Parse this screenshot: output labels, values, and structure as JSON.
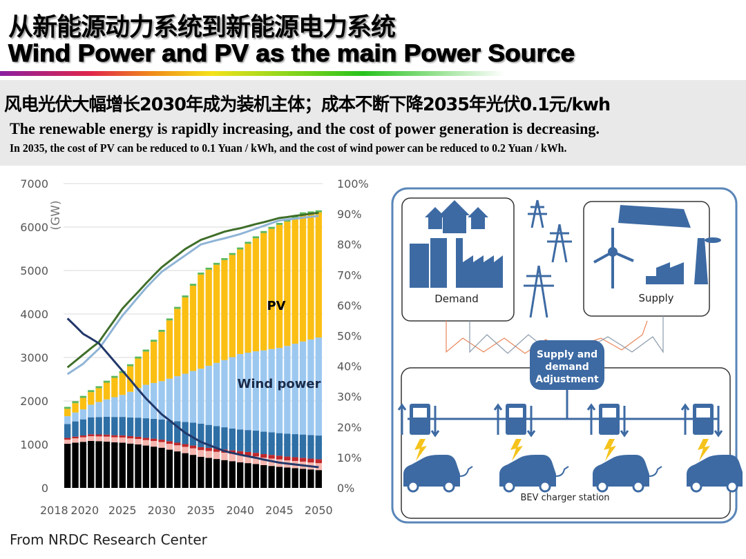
{
  "header": {
    "title_cn": "从新能源动力系统到新能源电力系统",
    "title_en": "Wind Power and PV as the main Power Source"
  },
  "summary": {
    "line_cn": "风电光伏大幅增长2030年成为装机主体；成本不断下降2035年光伏0.1元/kwh",
    "line_en_1": "The renewable energy  is rapidly increasing, and the cost of power generation is decreasing.",
    "line_en_2": "In 2035, the cost of PV can be reduced to 0.1 Yuan / kWh, and the cost of wind power can be reduced to 0.2 Yuan / kWh."
  },
  "footer": {
    "source": "From NRDC Research Center"
  },
  "chart_data": {
    "type": "bar",
    "stacked": true,
    "title": "",
    "ylabel": "(GW)",
    "ylim": [
      0,
      7000
    ],
    "yticks": [
      "0",
      "1000",
      "2000",
      "3000",
      "4000",
      "5000",
      "6000",
      "7000"
    ],
    "y2lim": [
      0,
      100
    ],
    "y2ticks": [
      "0%",
      "10%",
      "20%",
      "30%",
      "40%",
      "50%",
      "60%",
      "70%",
      "80%",
      "90%",
      "100%"
    ],
    "grid": true,
    "xticks": [
      "2018",
      "2020",
      "2025",
      "2030",
      "2035",
      "2040",
      "2045",
      "2050"
    ],
    "x": [
      2018,
      2019,
      2020,
      2021,
      2022,
      2023,
      2024,
      2025,
      2026,
      2027,
      2028,
      2029,
      2030,
      2031,
      2032,
      2033,
      2034,
      2035,
      2036,
      2037,
      2038,
      2039,
      2040,
      2041,
      2042,
      2043,
      2044,
      2045,
      2046,
      2047,
      2048,
      2049,
      2050
    ],
    "annotations": [
      {
        "text": "PV",
        "color": "#000000"
      },
      {
        "text": "Wind power",
        "color": "#1a2a4a"
      }
    ],
    "series": [
      {
        "color": "#000000",
        "values": [
          1015,
          1040,
          1060,
          1080,
          1075,
          1065,
          1050,
          1040,
          1020,
          1000,
          975,
          950,
          925,
          880,
          840,
          800,
          760,
          715,
          690,
          665,
          640,
          615,
          590,
          570,
          550,
          525,
          505,
          485,
          470,
          455,
          440,
          425,
          410
        ]
      },
      {
        "color": "#f4b6ae",
        "values": [
          95,
          100,
          105,
          110,
          110,
          115,
          115,
          120,
          120,
          125,
          125,
          130,
          130,
          135,
          140,
          145,
          150,
          155,
          160,
          165,
          170,
          170,
          175,
          175,
          175,
          170,
          170,
          170,
          165,
          165,
          165,
          160,
          160
        ]
      },
      {
        "color": "#c0282b",
        "values": [
          40,
          40,
          42,
          44,
          45,
          46,
          47,
          48,
          50,
          51,
          52,
          53,
          55,
          58,
          60,
          62,
          65,
          68,
          70,
          72,
          75,
          78,
          80,
          81,
          82,
          83,
          84,
          85,
          86,
          87,
          88,
          89,
          90
        ]
      },
      {
        "color": "#2e6fa6",
        "values": [
          320,
          350,
          370,
          390,
          400,
          410,
          420,
          425,
          430,
          440,
          450,
          455,
          465,
          480,
          495,
          510,
          525,
          540,
          530,
          520,
          510,
          505,
          500,
          505,
          510,
          515,
          520,
          520,
          525,
          530,
          535,
          540,
          545
        ]
      },
      {
        "name": "Wind power",
        "color": "#9cc8f0",
        "values": [
          180,
          205,
          230,
          290,
          345,
          400,
          455,
          505,
          590,
          680,
          770,
          825,
          880,
          960,
          1035,
          1110,
          1190,
          1265,
          1360,
          1455,
          1545,
          1640,
          1735,
          1780,
          1825,
          1870,
          1915,
          1960,
          2020,
          2080,
          2140,
          2200,
          2255
        ]
      },
      {
        "name": "PV",
        "color": "#fbbf14",
        "values": [
          170,
          215,
          265,
          290,
          320,
          385,
          445,
          505,
          590,
          680,
          765,
          950,
          1135,
          1340,
          1550,
          1755,
          1960,
          2165,
          2210,
          2255,
          2300,
          2350,
          2405,
          2505,
          2600,
          2700,
          2765,
          2830,
          2860,
          2895,
          2925,
          2900,
          2880
        ]
      },
      {
        "color": "#5cb85c",
        "values": [
          45,
          45,
          45,
          45,
          45,
          45,
          45,
          45,
          45,
          45,
          45,
          45,
          45,
          45,
          45,
          45,
          45,
          45,
          45,
          45,
          45,
          45,
          45,
          45,
          45,
          45,
          45,
          45,
          45,
          45,
          45,
          45,
          45
        ]
      }
    ],
    "lines": [
      {
        "axis": "right",
        "color": "#3f6e2a",
        "values": [
          39.6,
          41.7,
          43.8,
          45.9,
          47.9,
          51.6,
          55.2,
          58.9,
          61.7,
          64.4,
          67.2,
          69.9,
          72.5,
          74.5,
          76.5,
          78.5,
          80.0,
          81.5,
          82.4,
          83.3,
          84.2,
          84.8,
          85.3,
          86.0,
          86.7,
          87.3,
          88.0,
          88.7,
          89.0,
          89.4,
          89.7,
          90.1,
          90.4
        ]
      },
      {
        "axis": "right",
        "color": "#8fb4d6",
        "values": [
          37.4,
          39.1,
          40.8,
          43.3,
          45.7,
          49.3,
          53.0,
          56.6,
          59.6,
          62.7,
          65.7,
          68.4,
          71.0,
          72.8,
          74.6,
          76.4,
          78.2,
          80.0,
          80.7,
          81.4,
          82.0,
          82.7,
          83.4,
          84.3,
          85.2,
          86.1,
          87.0,
          87.9,
          88.2,
          88.5,
          88.8,
          89.1,
          89.4
        ]
      },
      {
        "axis": "right",
        "color": "#22386a",
        "values": [
          55.7,
          53.2,
          50.6,
          49.1,
          47.5,
          44.5,
          41.5,
          38.5,
          35.5,
          32.4,
          29.4,
          26.8,
          24.2,
          22.2,
          20.1,
          18.1,
          16.6,
          15.1,
          14.1,
          13.1,
          12.1,
          11.5,
          10.9,
          10.4,
          9.9,
          9.3,
          8.8,
          8.3,
          8.0,
          7.7,
          7.4,
          7.1,
          6.8
        ]
      }
    ]
  },
  "diagram": {
    "demand_label": "Demand",
    "supply_label": "Supply",
    "adjustment_label": [
      "Supply and",
      "demand",
      "Adjustment"
    ],
    "station_label": "BEV charger station",
    "colors": {
      "icon": "#3d6aa3",
      "border": "#5a86b8",
      "bolt": "#f5c31c",
      "signal_orange": "#e9865a",
      "signal_gray": "#8a9aaa"
    }
  }
}
